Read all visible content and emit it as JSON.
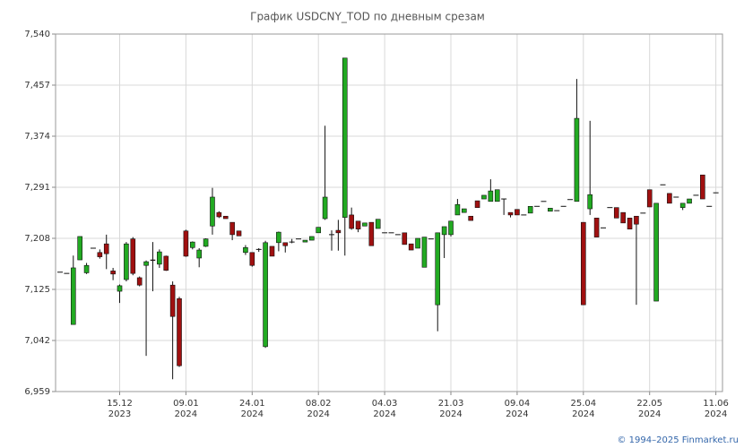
{
  "chart_data": {
    "type": "candlestick",
    "title": "График USDCNY_TOD по дневным срезам",
    "footer": "© 1994–2025 Finmarket.ru",
    "up_color": "#22aa22",
    "down_color": "#a01010",
    "grid": true,
    "ylim": [
      6.959,
      7.54
    ],
    "yticks": [
      {
        "value": 6.959,
        "label": "6,959"
      },
      {
        "value": 7.042,
        "label": "7,042"
      },
      {
        "value": 7.125,
        "label": "7,125"
      },
      {
        "value": 7.208,
        "label": "7,208"
      },
      {
        "value": 7.291,
        "label": "7,291"
      },
      {
        "value": 7.374,
        "label": "7,374"
      },
      {
        "value": 7.457,
        "label": "7,457"
      },
      {
        "value": 7.54,
        "label": "7,540"
      }
    ],
    "xticks": [
      {
        "value": 9,
        "label": "15.12",
        "year": "2023"
      },
      {
        "value": 19,
        "label": "09.01",
        "year": "2024"
      },
      {
        "value": 29,
        "label": "24.01",
        "year": "2024"
      },
      {
        "value": 39,
        "label": "08.02",
        "year": "2024"
      },
      {
        "value": 49,
        "label": "04.03",
        "year": "2024"
      },
      {
        "value": 59,
        "label": "21.03",
        "year": "2024"
      },
      {
        "value": 69,
        "label": "09.04",
        "year": "2024"
      },
      {
        "value": 79,
        "label": "25.04",
        "year": "2024"
      },
      {
        "value": 89,
        "label": "22.05",
        "year": "2024"
      },
      {
        "value": 99,
        "label": "11.06",
        "year": "2024"
      }
    ],
    "open": [
      7.153,
      7.151,
      7.068,
      7.173,
      7.152,
      7.192,
      7.185,
      7.199,
      7.155,
      7.122,
      7.141,
      7.207,
      7.144,
      7.164,
      7.173,
      7.166,
      7.179,
      7.132,
      7.11,
      7.22,
      7.193,
      7.176,
      7.195,
      7.228,
      7.25,
      7.244,
      7.234,
      7.22,
      7.185,
      7.185,
      7.19,
      7.032,
      7.195,
      7.201,
      7.201,
      7.202,
      7.207,
      7.202,
      7.205,
      7.217,
      7.24,
      7.214,
      7.221,
      7.242,
      7.246,
      7.236,
      7.228,
      7.234,
      7.224,
      7.217,
      7.217,
      7.214,
      7.217,
      7.199,
      7.192,
      7.161,
      7.207,
      7.1,
      7.214,
      7.214,
      7.246,
      7.25,
      7.244,
      7.269,
      7.272,
      7.268,
      7.268,
      7.272,
      7.25,
      7.255,
      7.246,
      7.249,
      7.26,
      7.268,
      7.252,
      7.253,
      7.26,
      7.271,
      7.268,
      7.234,
      7.256,
      7.241,
      7.225,
      7.258,
      7.258,
      7.25,
      7.241,
      7.244,
      7.249,
      7.287,
      7.106,
      7.295,
      7.281,
      7.275,
      7.258,
      7.265,
      7.278,
      7.311,
      7.26,
      7.282
    ],
    "high": [
      7.153,
      7.151,
      7.18,
      7.211,
      7.168,
      7.192,
      7.19,
      7.214,
      7.16,
      7.133,
      7.202,
      7.21,
      7.146,
      7.172,
      7.202,
      7.19,
      7.18,
      7.138,
      7.113,
      7.222,
      7.203,
      7.192,
      7.208,
      7.29,
      7.252,
      7.244,
      7.234,
      7.22,
      7.197,
      7.185,
      7.192,
      7.204,
      7.195,
      7.219,
      7.201,
      7.207,
      7.207,
      7.205,
      7.211,
      7.226,
      7.391,
      7.221,
      7.238,
      7.501,
      7.258,
      7.236,
      7.233,
      7.234,
      7.239,
      7.217,
      7.217,
      7.214,
      7.217,
      7.199,
      7.208,
      7.21,
      7.207,
      7.217,
      7.227,
      7.236,
      7.272,
      7.256,
      7.244,
      7.269,
      7.278,
      7.304,
      7.287,
      7.272,
      7.25,
      7.255,
      7.246,
      7.26,
      7.26,
      7.268,
      7.257,
      7.253,
      7.26,
      7.271,
      7.467,
      7.234,
      7.399,
      7.241,
      7.225,
      7.258,
      7.258,
      7.25,
      7.241,
      7.244,
      7.249,
      7.287,
      7.265,
      7.295,
      7.281,
      7.275,
      7.265,
      7.272,
      7.278,
      7.311,
      7.26,
      7.282
    ],
    "low": [
      7.153,
      7.151,
      7.068,
      7.173,
      7.15,
      7.192,
      7.175,
      7.158,
      7.14,
      7.103,
      7.138,
      7.148,
      7.13,
      7.017,
      7.122,
      7.16,
      7.155,
      6.979,
      6.999,
      7.178,
      7.19,
      7.161,
      7.194,
      7.214,
      7.241,
      7.24,
      7.205,
      7.212,
      7.181,
      7.162,
      7.186,
      7.03,
      7.179,
      7.187,
      7.185,
      7.2,
      7.207,
      7.202,
      7.205,
      7.217,
      7.238,
      7.188,
      7.188,
      7.18,
      7.222,
      7.218,
      7.228,
      7.196,
      7.224,
      7.217,
      7.217,
      7.214,
      7.198,
      7.189,
      7.192,
      7.161,
      7.207,
      7.057,
      7.176,
      7.211,
      7.246,
      7.25,
      7.237,
      7.258,
      7.272,
      7.268,
      7.268,
      7.246,
      7.242,
      7.246,
      7.246,
      7.249,
      7.26,
      7.268,
      7.252,
      7.253,
      7.26,
      7.271,
      7.268,
      7.1,
      7.246,
      7.21,
      7.225,
      7.258,
      7.241,
      7.233,
      7.223,
      7.1,
      7.249,
      7.259,
      7.106,
      7.295,
      7.265,
      7.275,
      7.254,
      7.265,
      7.278,
      7.272,
      7.26,
      7.282
    ],
    "close": [
      7.153,
      7.151,
      7.16,
      7.211,
      7.164,
      7.192,
      7.178,
      7.183,
      7.15,
      7.131,
      7.199,
      7.151,
      7.132,
      7.17,
      7.172,
      7.186,
      7.156,
      7.081,
      7.001,
      7.179,
      7.202,
      7.189,
      7.207,
      7.275,
      7.243,
      7.24,
      7.214,
      7.212,
      7.193,
      7.164,
      7.19,
      7.201,
      7.179,
      7.218,
      7.196,
      7.202,
      7.207,
      7.205,
      7.211,
      7.226,
      7.275,
      7.214,
      7.217,
      7.501,
      7.224,
      7.223,
      7.233,
      7.196,
      7.239,
      7.217,
      7.217,
      7.214,
      7.198,
      7.189,
      7.208,
      7.21,
      7.207,
      7.217,
      7.227,
      7.236,
      7.263,
      7.256,
      7.237,
      7.258,
      7.278,
      7.285,
      7.287,
      7.272,
      7.246,
      7.246,
      7.246,
      7.26,
      7.26,
      7.268,
      7.257,
      7.253,
      7.26,
      7.271,
      7.403,
      7.1,
      7.279,
      7.21,
      7.225,
      7.258,
      7.241,
      7.233,
      7.223,
      7.231,
      7.249,
      7.259,
      7.265,
      7.295,
      7.265,
      7.275,
      7.265,
      7.272,
      7.278,
      7.272,
      7.26,
      7.282
    ]
  }
}
